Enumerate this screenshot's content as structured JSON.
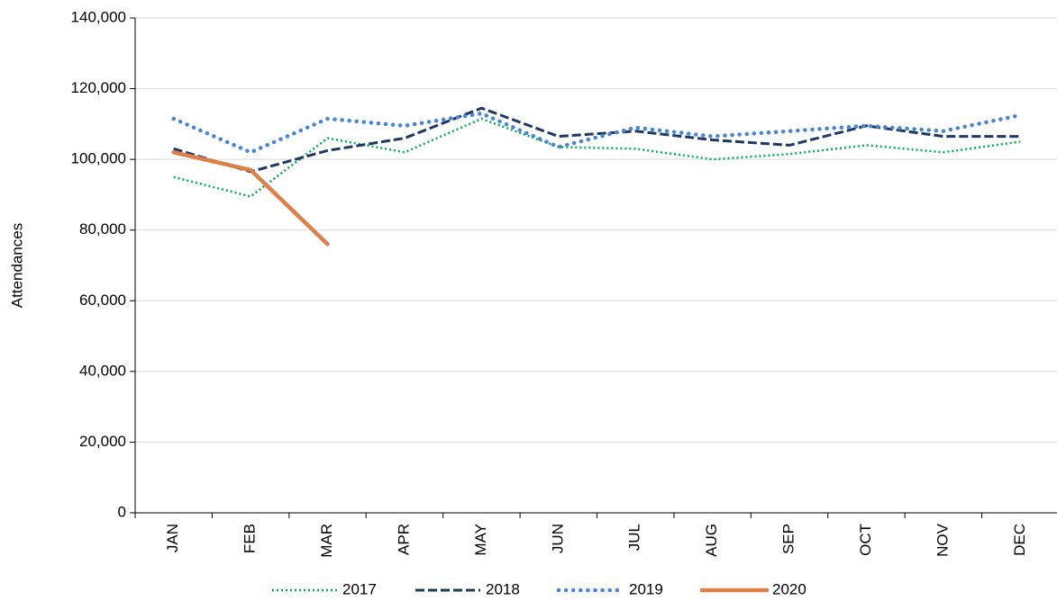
{
  "chart_data": {
    "type": "line",
    "y_label": "Attendances",
    "categories": [
      "JAN",
      "FEB",
      "MAR",
      "APR",
      "MAY",
      "JUN",
      "JUL",
      "AUG",
      "SEP",
      "OCT",
      "NOV",
      "DEC"
    ],
    "series": [
      {
        "name": "2017",
        "color": "#00b050",
        "dash": "dotted",
        "values": [
          95000,
          89500,
          106000,
          102000,
          111500,
          103500,
          103000,
          100000,
          101500,
          104000,
          102000,
          105000
        ]
      },
      {
        "name": "2018",
        "color": "#1f3864",
        "dash": "dashed",
        "values": [
          103000,
          96500,
          102500,
          106000,
          114500,
          106500,
          108000,
          105500,
          104000,
          109500,
          106500,
          106500
        ]
      },
      {
        "name": "2019",
        "color": "#4a86d4",
        "dash": "round-dotted",
        "values": [
          111500,
          102000,
          111500,
          109500,
          113000,
          103500,
          109000,
          106500,
          108000,
          109500,
          108000,
          112500
        ]
      },
      {
        "name": "2020",
        "color": "#dd8047",
        "dash": "solid",
        "values": [
          102000,
          97000,
          76000,
          null,
          null,
          null,
          null,
          null,
          null,
          null,
          null,
          null
        ]
      }
    ],
    "ylim": [
      0,
      140000
    ],
    "yticks": [
      0,
      {
        "value": 20000,
        "label": "20,000"
      },
      {
        "value": 40000,
        "label": "40,000"
      },
      {
        "value": 60000,
        "label": "60,000"
      },
      {
        "value": 80000,
        "label": "80,000"
      },
      {
        "value": 100000,
        "label": "100,000"
      },
      {
        "value": 120000,
        "label": "120,000"
      },
      {
        "value": 140000,
        "label": "140,000"
      }
    ],
    "grid": true,
    "legend": "bottom"
  }
}
